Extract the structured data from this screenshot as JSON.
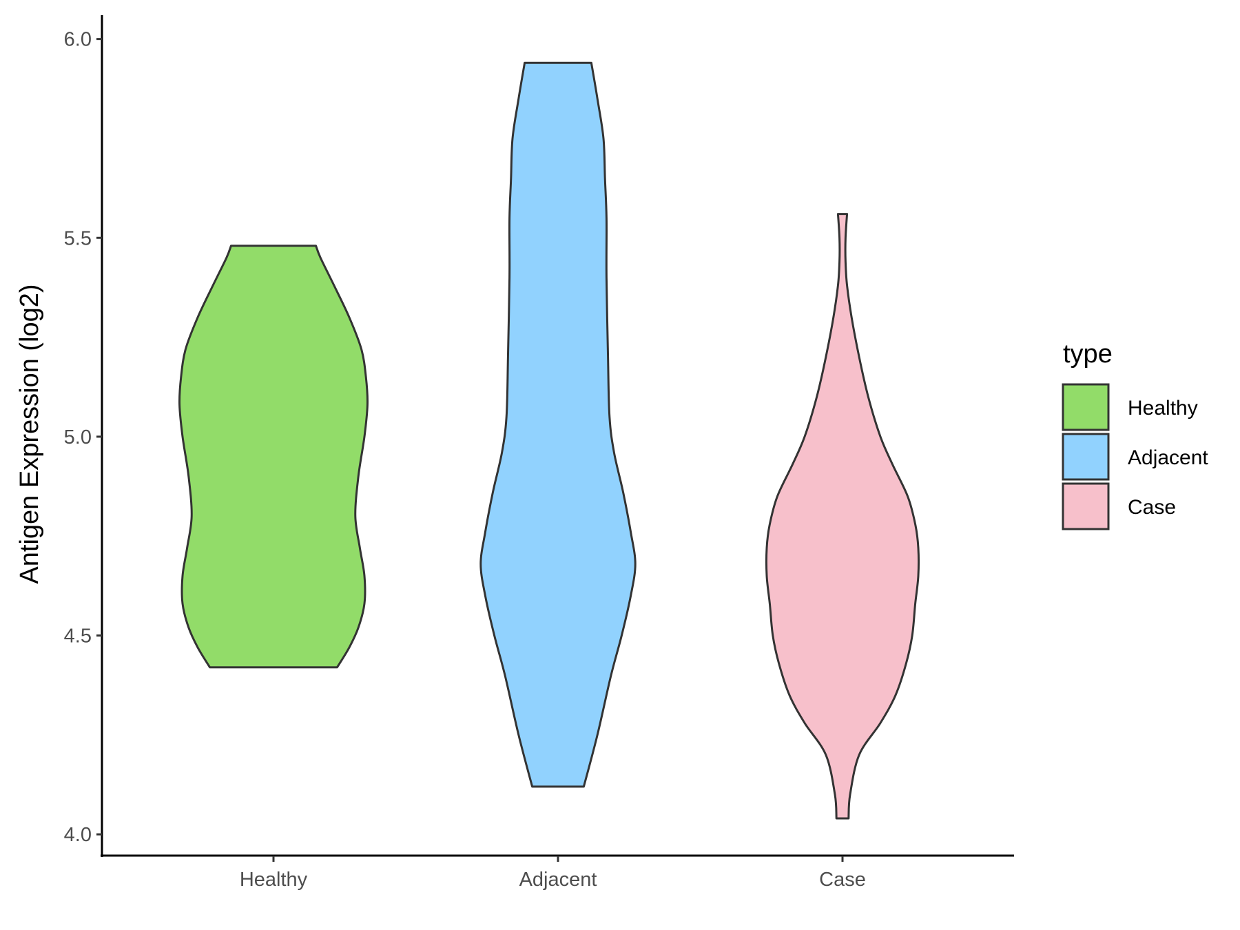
{
  "chart_data": {
    "type": "violin",
    "title": "",
    "xlabel": "",
    "ylabel": "Antigen Expression (log2)",
    "ylim": [
      3.95,
      6.06
    ],
    "yticks": [
      "4.0",
      "4.5",
      "5.0",
      "5.5",
      "6.0"
    ],
    "categories": [
      "Healthy",
      "Adjacent",
      "Case"
    ],
    "grid": false,
    "legend": {
      "title": "type",
      "placement": "right",
      "entries": [
        "Healthy",
        "Adjacent",
        "Case"
      ]
    },
    "series": [
      {
        "name": "Healthy",
        "color": "#92dc69",
        "min": 4.42,
        "max": 5.48,
        "density": [
          [
            4.42,
            0.42
          ],
          [
            4.47,
            0.5
          ],
          [
            4.52,
            0.56
          ],
          [
            4.58,
            0.6
          ],
          [
            4.65,
            0.6
          ],
          [
            4.72,
            0.57
          ],
          [
            4.8,
            0.54
          ],
          [
            4.9,
            0.56
          ],
          [
            5.0,
            0.6
          ],
          [
            5.08,
            0.62
          ],
          [
            5.15,
            0.61
          ],
          [
            5.22,
            0.58
          ],
          [
            5.3,
            0.5
          ],
          [
            5.38,
            0.4
          ],
          [
            5.45,
            0.31
          ],
          [
            5.48,
            0.28
          ]
        ]
      },
      {
        "name": "Adjacent",
        "color": "#91d2fe",
        "min": 4.12,
        "max": 5.94,
        "density": [
          [
            4.12,
            0.17
          ],
          [
            4.25,
            0.26
          ],
          [
            4.4,
            0.35
          ],
          [
            4.5,
            0.42
          ],
          [
            4.6,
            0.48
          ],
          [
            4.68,
            0.51
          ],
          [
            4.76,
            0.48
          ],
          [
            4.86,
            0.43
          ],
          [
            4.96,
            0.37
          ],
          [
            5.05,
            0.34
          ],
          [
            5.2,
            0.33
          ],
          [
            5.4,
            0.32
          ],
          [
            5.55,
            0.32
          ],
          [
            5.65,
            0.31
          ],
          [
            5.75,
            0.3
          ],
          [
            5.85,
            0.26
          ],
          [
            5.94,
            0.22
          ]
        ]
      },
      {
        "name": "Case",
        "color": "#f7c0cb",
        "min": 4.04,
        "max": 5.56,
        "density": [
          [
            4.04,
            0.04
          ],
          [
            4.1,
            0.05
          ],
          [
            4.2,
            0.11
          ],
          [
            4.28,
            0.25
          ],
          [
            4.35,
            0.35
          ],
          [
            4.43,
            0.42
          ],
          [
            4.5,
            0.46
          ],
          [
            4.58,
            0.48
          ],
          [
            4.65,
            0.5
          ],
          [
            4.72,
            0.5
          ],
          [
            4.78,
            0.48
          ],
          [
            4.85,
            0.43
          ],
          [
            4.93,
            0.33
          ],
          [
            5.0,
            0.25
          ],
          [
            5.1,
            0.17
          ],
          [
            5.2,
            0.11
          ],
          [
            5.3,
            0.06
          ],
          [
            5.38,
            0.03
          ],
          [
            5.44,
            0.02
          ],
          [
            5.5,
            0.02
          ],
          [
            5.56,
            0.03
          ]
        ]
      }
    ]
  }
}
